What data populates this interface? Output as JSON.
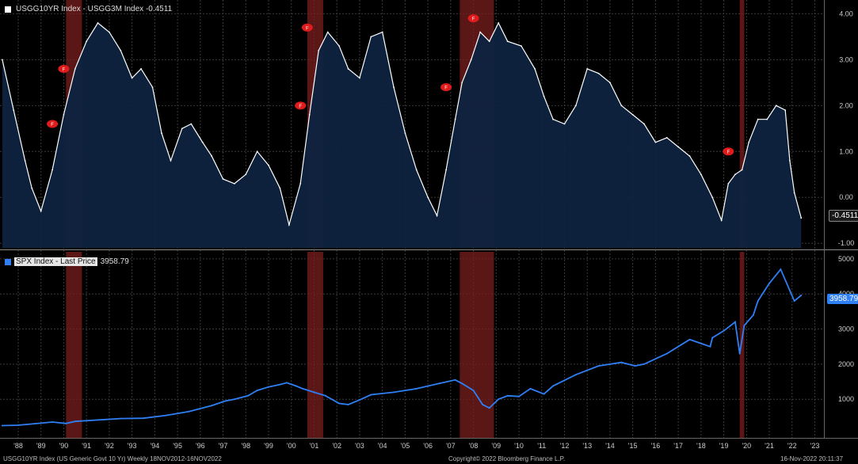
{
  "chart_data": [
    {
      "type": "area",
      "title": "USGG10YR Index - USGG3M Index -0.4511",
      "last_value_label": "-0.4511",
      "ylim": [
        -1.1,
        4.3
      ],
      "yticks": [
        -1,
        0,
        1,
        2,
        3,
        4
      ],
      "ytick_labels": [
        "-1.00",
        "0.00",
        "1.00",
        "2.00",
        "3.00",
        "4.00"
      ],
      "series": [
        {
          "x": [
            1987.8,
            1988.3,
            1988.8,
            1989.1,
            1989.5,
            1990.0,
            1990.5,
            1991.0,
            1991.5,
            1992.0,
            1992.5,
            1993.0,
            1993.5,
            1993.9,
            1994.4,
            1994.8,
            1995.2,
            1995.7,
            1996.1,
            1996.6,
            1997.0,
            1997.5,
            1998.0,
            1998.5,
            1999.0,
            1999.5,
            2000.0,
            2000.4,
            2000.9,
            2001.3,
            2001.7,
            2002.1,
            2002.6,
            2003.0,
            2003.5,
            2004.0,
            2004.5,
            2005.0,
            2005.5,
            2006.0,
            2006.5,
            2006.9,
            2007.3,
            2007.7,
            2008.0,
            2008.4,
            2008.8,
            2009.2,
            2009.6,
            2010.0,
            2010.6,
            2011.2,
            2011.6,
            2012.0,
            2012.5,
            2013.0,
            2013.5,
            2014.0,
            2014.5,
            2015.0,
            2015.5,
            2016.0,
            2016.5,
            2017.0,
            2017.5,
            2018.0,
            2018.5,
            2019.0,
            2019.4,
            2019.7,
            2020.0,
            2020.3,
            2020.6,
            2021.0,
            2021.4,
            2021.8,
            2022.2,
            2022.4,
            2022.6,
            2022.9
          ],
          "values": [
            3.0,
            1.9,
            0.8,
            0.2,
            -0.3,
            0.6,
            1.8,
            2.8,
            3.4,
            3.8,
            3.6,
            3.2,
            2.6,
            2.8,
            2.4,
            1.4,
            0.8,
            1.5,
            1.6,
            1.2,
            0.9,
            0.4,
            0.3,
            0.5,
            1.0,
            0.7,
            0.2,
            -0.6,
            0.3,
            1.8,
            3.2,
            3.6,
            3.3,
            2.8,
            2.6,
            3.5,
            3.6,
            2.4,
            1.4,
            0.6,
            0.0,
            -0.4,
            0.6,
            1.7,
            2.5,
            3.0,
            3.6,
            3.4,
            3.8,
            3.4,
            3.3,
            2.8,
            2.2,
            1.7,
            1.6,
            2.0,
            2.8,
            2.7,
            2.5,
            2.0,
            1.8,
            1.6,
            1.2,
            1.3,
            1.1,
            0.9,
            0.5,
            0.0,
            -0.5,
            0.3,
            0.5,
            0.6,
            1.2,
            1.7,
            1.7,
            2.0,
            1.9,
            0.8,
            0.1,
            -0.45
          ]
        }
      ],
      "highlight_markers": [
        {
          "x": 1990.0,
          "y": 1.6,
          "label": "F"
        },
        {
          "x": 1990.5,
          "y": 2.8,
          "label": "F"
        },
        {
          "x": 2000.9,
          "y": 2.0,
          "label": "F"
        },
        {
          "x": 2001.2,
          "y": 3.7,
          "label": "F"
        },
        {
          "x": 2007.3,
          "y": 2.4,
          "label": "F"
        },
        {
          "x": 2008.5,
          "y": 3.9,
          "label": "F"
        },
        {
          "x": 2019.7,
          "y": 1.0,
          "label": "F"
        }
      ]
    },
    {
      "type": "line",
      "title": "SPX Index - Last Price 3958.79",
      "legend_name": "SPX Index - Last Price",
      "last_value_label": "3958.79",
      "ylim": [
        -100,
        5200
      ],
      "yticks": [
        1000,
        2000,
        3000,
        4000,
        5000
      ],
      "ytick_labels": [
        "1000",
        "2000",
        "3000",
        "4000",
        "5000"
      ],
      "series": [
        {
          "x": [
            1987.8,
            1988.5,
            1989.5,
            1990.0,
            1990.6,
            1991.0,
            1992.0,
            1993.0,
            1994.0,
            1995.0,
            1996.0,
            1997.0,
            1997.6,
            1998.0,
            1998.6,
            1999.0,
            1999.5,
            2000.0,
            2000.3,
            2000.7,
            2001.0,
            2001.5,
            2002.0,
            2002.6,
            2003.0,
            2003.5,
            2004.0,
            2005.0,
            2006.0,
            2007.0,
            2007.7,
            2008.0,
            2008.5,
            2008.9,
            2009.2,
            2009.6,
            2010.0,
            2010.5,
            2011.0,
            2011.6,
            2012.0,
            2013.0,
            2014.0,
            2015.0,
            2015.6,
            2016.0,
            2016.5,
            2017.0,
            2018.0,
            2018.9,
            2019.0,
            2019.5,
            2020.0,
            2020.2,
            2020.4,
            2020.8,
            2021.0,
            2021.5,
            2022.0,
            2022.4,
            2022.6,
            2022.9
          ],
          "values": [
            250,
            260,
            320,
            350,
            310,
            370,
            410,
            450,
            460,
            540,
            650,
            820,
            950,
            1000,
            1100,
            1250,
            1350,
            1420,
            1470,
            1380,
            1300,
            1200,
            1100,
            880,
            850,
            980,
            1130,
            1200,
            1300,
            1450,
            1550,
            1450,
            1250,
            850,
            750,
            1000,
            1100,
            1080,
            1300,
            1150,
            1380,
            1700,
            1950,
            2050,
            1950,
            2000,
            2150,
            2300,
            2700,
            2500,
            2750,
            2950,
            3200,
            2300,
            3100,
            3400,
            3800,
            4300,
            4700,
            4100,
            3800,
            3958.79
          ]
        }
      ]
    }
  ],
  "x_axis": {
    "xlim": [
      1987.7,
      2023.9
    ],
    "ticks": [
      1988.5,
      1989.5,
      1990.5,
      1991.5,
      1992.5,
      1993.5,
      1994.5,
      1995.5,
      1996.5,
      1997.5,
      1998.5,
      1999.5,
      2000.5,
      2001.5,
      2002.5,
      2003.5,
      2004.5,
      2005.5,
      2006.5,
      2007.5,
      2008.5,
      2009.5,
      2010.5,
      2011.5,
      2012.5,
      2013.5,
      2014.5,
      2015.5,
      2016.5,
      2017.5,
      2018.5,
      2019.5,
      2020.5,
      2021.5,
      2022.5,
      2023.5
    ],
    "tick_labels": [
      "'88",
      "'89",
      "'90",
      "'91",
      "'92",
      "'93",
      "'94",
      "'95",
      "'96",
      "'97",
      "'98",
      "'99",
      "'00",
      "'01",
      "'02",
      "'03",
      "'04",
      "'05",
      "'06",
      "'07",
      "'08",
      "'09",
      "'10",
      "'11",
      "'12",
      "'13",
      "'14",
      "'15",
      "'16",
      "'17",
      "'18",
      "'19",
      "'20",
      "'21",
      "'22",
      "'23"
    ]
  },
  "shaded_periods": [
    [
      1990.6,
      1991.3
    ],
    [
      2001.2,
      2001.9
    ],
    [
      2007.9,
      2009.4
    ],
    [
      2020.2,
      2020.4
    ]
  ],
  "colors": {
    "line1": "#ffffff",
    "area1": "#0e2340",
    "line2": "#2f7ff5",
    "shade": "#7a1e1e",
    "marker": "#e01b1b",
    "grid": "#3a3a3a"
  },
  "footer": {
    "left": "USGG10YR Index (US Generic Govt 10 Yr)  Weekly 18NOV2012-16NOV2022",
    "center": "Copyright© 2022 Bloomberg Finance L.P.",
    "right": "16-Nov-2022 20:11:37"
  }
}
